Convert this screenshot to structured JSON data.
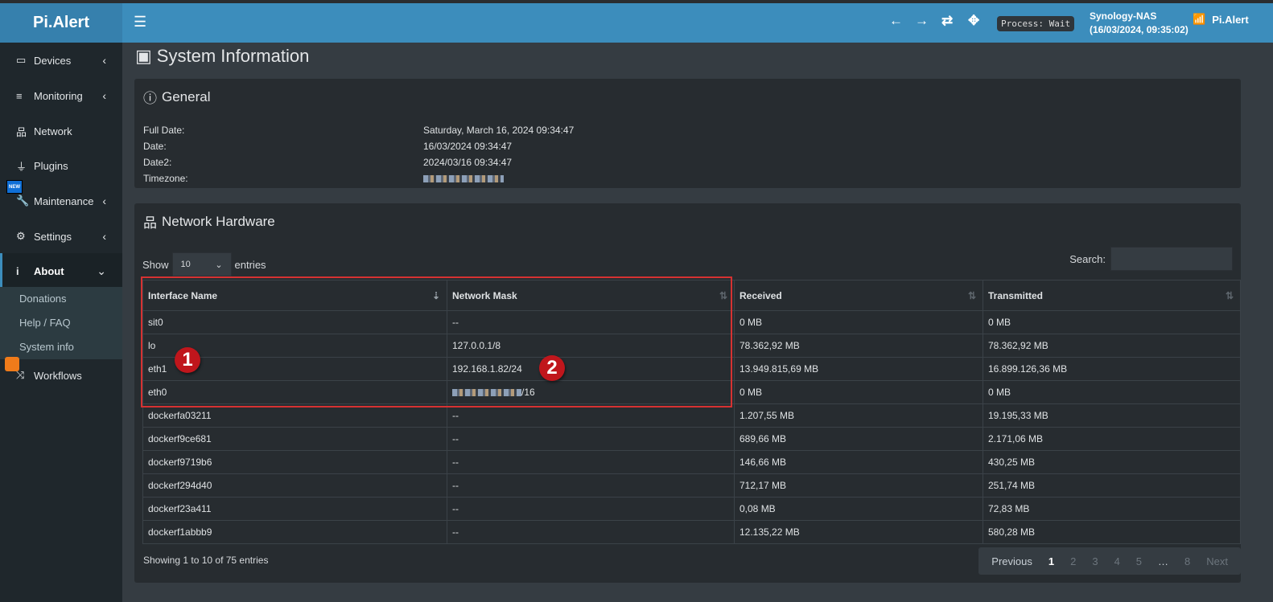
{
  "app": {
    "logo": "Pi.Alert",
    "brand": "Pi.Alert"
  },
  "header": {
    "process": "Process: Wait",
    "host": "Synology-NAS",
    "host_time": "(16/03/2024, 09:35:02)"
  },
  "sidebar": {
    "items": [
      {
        "label": "Devices"
      },
      {
        "label": "Monitoring"
      },
      {
        "label": "Network"
      },
      {
        "label": "Plugins"
      },
      {
        "label": "Maintenance",
        "badge": "NEW"
      },
      {
        "label": "Settings"
      },
      {
        "label": "About"
      },
      {
        "label": "Workflows"
      }
    ],
    "about_sub": [
      "Donations",
      "Help / FAQ",
      "System info"
    ]
  },
  "page": {
    "title": "System Information"
  },
  "general": {
    "title": "General",
    "rows": [
      {
        "k": "Full Date:",
        "v": "Saturday, March 16, 2024 09:34:47"
      },
      {
        "k": "Date:",
        "v": "16/03/2024 09:34:47"
      },
      {
        "k": "Date2:",
        "v": "2024/03/16 09:34:47"
      },
      {
        "k": "Timezone:",
        "v": ""
      }
    ]
  },
  "network": {
    "title": "Network Hardware",
    "show": "Show",
    "entries": "entries",
    "page_size": "10",
    "search_label": "Search:",
    "columns": [
      "Interface Name",
      "Network Mask",
      "Received",
      "Transmitted"
    ],
    "rows": [
      [
        "sit0",
        "--",
        "0 MB",
        "0 MB"
      ],
      [
        "lo",
        "127.0.0.1/8",
        "78.362,92 MB",
        "78.362,92 MB"
      ],
      [
        "eth1",
        "192.168.1.82/24",
        "13.949.815,69 MB",
        "16.899.126,36 MB"
      ],
      [
        "eth0",
        "/16",
        "0 MB",
        "0 MB"
      ],
      [
        "dockerfa03211",
        "--",
        "1.207,55 MB",
        "19.195,33 MB"
      ],
      [
        "dockerf9ce681",
        "--",
        "689,66 MB",
        "2.171,06 MB"
      ],
      [
        "dockerf9719b6",
        "--",
        "146,66 MB",
        "430,25 MB"
      ],
      [
        "dockerf294d40",
        "--",
        "712,17 MB",
        "251,74 MB"
      ],
      [
        "dockerf23a411",
        "--",
        "0,08 MB",
        "72,83 MB"
      ],
      [
        "dockerf1abbb9",
        "--",
        "12.135,22 MB",
        "580,28 MB"
      ]
    ],
    "info": "Showing 1 to 10 of 75 entries",
    "pager": {
      "previous": "Previous",
      "pages": [
        "1",
        "2",
        "3",
        "4",
        "5",
        "…",
        "8"
      ],
      "next": "Next",
      "current": "1"
    }
  },
  "annotations": [
    "1",
    "2"
  ],
  "colors": {
    "header": "#3c8dbc",
    "sidebar": "#1f272c",
    "highlight": "#d63232"
  }
}
